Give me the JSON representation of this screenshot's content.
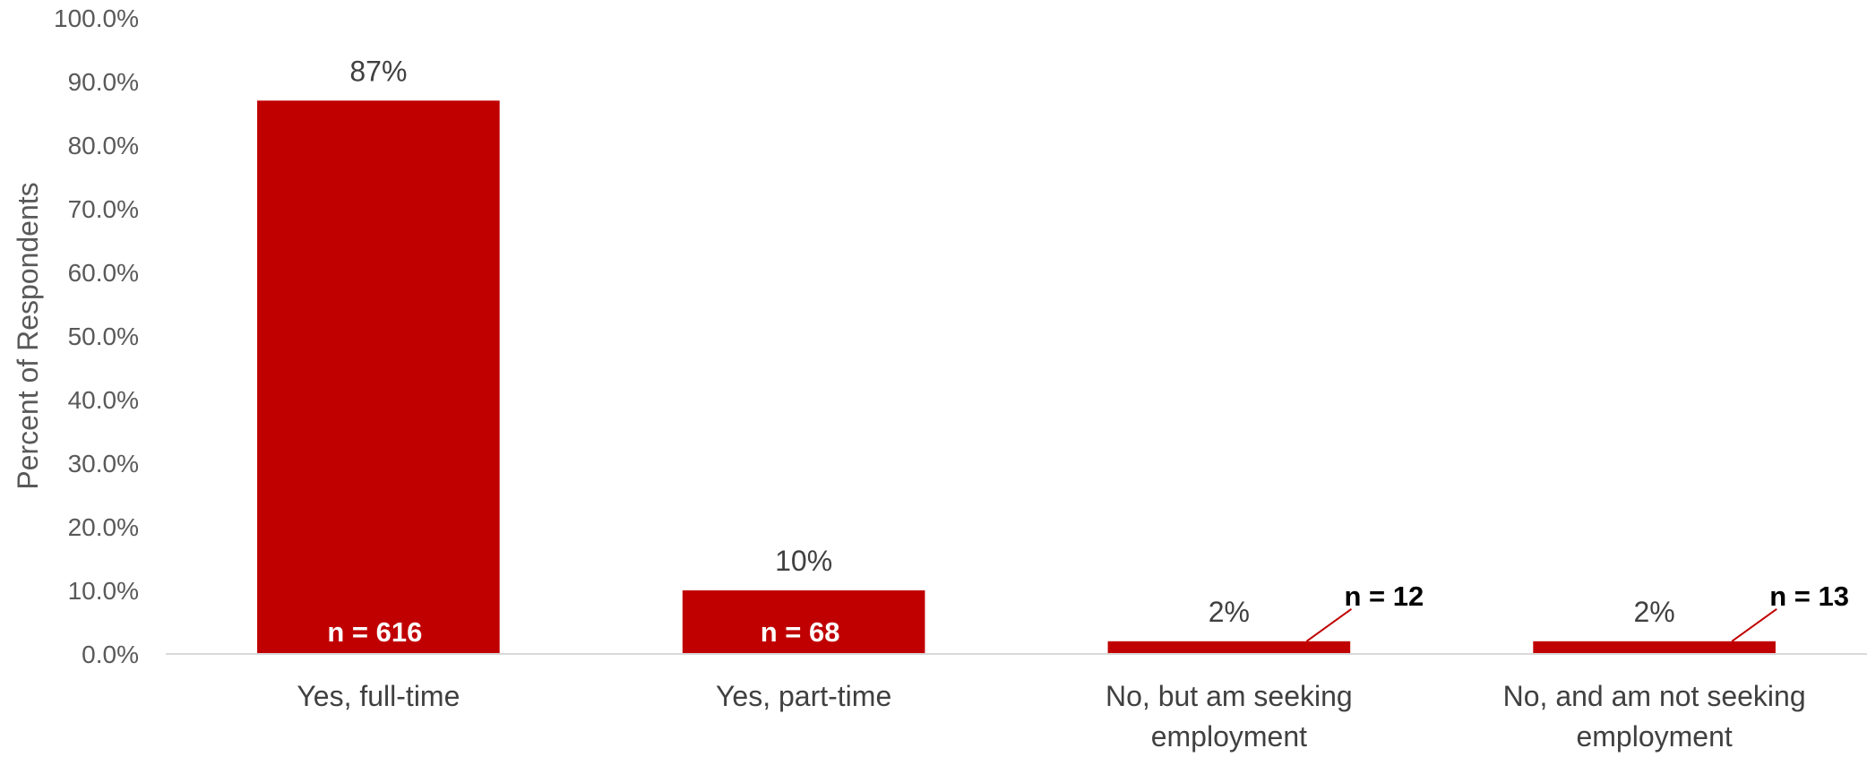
{
  "chart_data": {
    "type": "bar",
    "title": "",
    "xlabel": "",
    "ylabel": "Percent of Respondents",
    "ylim": [
      0,
      100
    ],
    "yticks": [
      "0.0%",
      "10.0%",
      "20.0%",
      "30.0%",
      "40.0%",
      "50.0%",
      "60.0%",
      "70.0%",
      "80.0%",
      "90.0%",
      "100.0%"
    ],
    "categories": [
      [
        "Yes, full-time"
      ],
      [
        "Yes, part-time"
      ],
      [
        "No, but am seeking",
        "employment"
      ],
      [
        "No, and am not seeking",
        "employment"
      ]
    ],
    "values": [
      87,
      10,
      2,
      2
    ],
    "value_labels": [
      "87%",
      "10%",
      "2%",
      "2%"
    ],
    "n_labels": [
      "n = 616",
      "n = 68",
      "n = 12",
      "n = 13"
    ],
    "bar_color": "#C00000",
    "grid": false,
    "legend": "none"
  }
}
